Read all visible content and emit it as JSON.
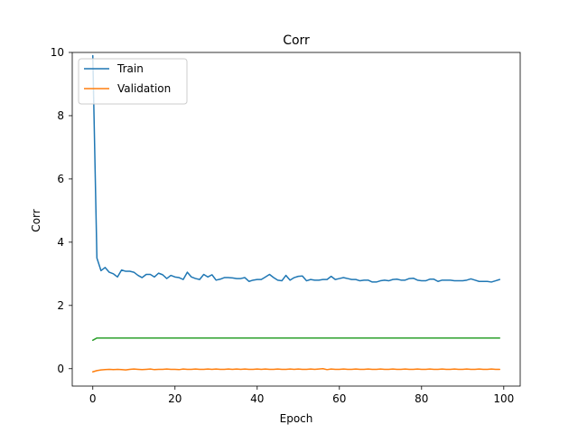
{
  "chart_data": {
    "type": "line",
    "title": "Corr",
    "xlabel": "Epoch",
    "ylabel": "Corr",
    "xlim": [
      -5,
      104
    ],
    "ylim": [
      -0.55,
      10.0
    ],
    "xticks": [
      0,
      20,
      40,
      60,
      80,
      100
    ],
    "yticks": [
      0,
      2,
      4,
      6,
      8,
      10
    ],
    "grid": false,
    "legend": {
      "placement": "top-left",
      "entries": [
        "Train",
        "Validation"
      ]
    },
    "series": [
      {
        "name": "Train",
        "color": "#1f77b4",
        "x": [
          0,
          1,
          2,
          3,
          4,
          5,
          6,
          7,
          8,
          9,
          10,
          11,
          12,
          13,
          14,
          15,
          16,
          17,
          18,
          19,
          20,
          21,
          22,
          23,
          24,
          25,
          26,
          27,
          28,
          29,
          30,
          31,
          32,
          33,
          34,
          35,
          36,
          37,
          38,
          39,
          40,
          41,
          42,
          43,
          44,
          45,
          46,
          47,
          48,
          49,
          50,
          51,
          52,
          53,
          54,
          55,
          56,
          57,
          58,
          59,
          60,
          61,
          62,
          63,
          64,
          65,
          66,
          67,
          68,
          69,
          70,
          71,
          72,
          73,
          74,
          75,
          76,
          77,
          78,
          79,
          80,
          81,
          82,
          83,
          84,
          85,
          86,
          87,
          88,
          89,
          90,
          91,
          92,
          93,
          94,
          95,
          96,
          97,
          98,
          99
        ],
        "y": [
          9.9,
          3.5,
          3.1,
          3.2,
          3.05,
          3.0,
          2.9,
          3.12,
          3.08,
          3.08,
          3.05,
          2.95,
          2.88,
          2.98,
          2.98,
          2.9,
          3.02,
          2.97,
          2.85,
          2.95,
          2.9,
          2.88,
          2.82,
          3.05,
          2.9,
          2.85,
          2.82,
          2.98,
          2.9,
          2.97,
          2.8,
          2.83,
          2.88,
          2.88,
          2.87,
          2.85,
          2.85,
          2.88,
          2.76,
          2.8,
          2.82,
          2.82,
          2.9,
          2.98,
          2.88,
          2.8,
          2.78,
          2.95,
          2.8,
          2.88,
          2.92,
          2.93,
          2.78,
          2.82,
          2.8,
          2.8,
          2.82,
          2.82,
          2.92,
          2.82,
          2.85,
          2.88,
          2.85,
          2.82,
          2.82,
          2.78,
          2.8,
          2.8,
          2.74,
          2.74,
          2.78,
          2.8,
          2.78,
          2.82,
          2.83,
          2.8,
          2.8,
          2.85,
          2.86,
          2.8,
          2.78,
          2.78,
          2.83,
          2.83,
          2.76,
          2.8,
          2.8,
          2.8,
          2.78,
          2.78,
          2.78,
          2.8,
          2.84,
          2.8,
          2.76,
          2.76,
          2.76,
          2.74,
          2.78,
          2.82
        ]
      },
      {
        "name": "Validation",
        "color": "#ff7f0e",
        "x": [
          0,
          1,
          2,
          3,
          4,
          5,
          6,
          7,
          8,
          9,
          10,
          11,
          12,
          13,
          14,
          15,
          16,
          17,
          18,
          19,
          20,
          21,
          22,
          23,
          24,
          25,
          26,
          27,
          28,
          29,
          30,
          31,
          32,
          33,
          34,
          35,
          36,
          37,
          38,
          39,
          40,
          41,
          42,
          43,
          44,
          45,
          46,
          47,
          48,
          49,
          50,
          51,
          52,
          53,
          54,
          55,
          56,
          57,
          58,
          59,
          60,
          61,
          62,
          63,
          64,
          65,
          66,
          67,
          68,
          69,
          70,
          71,
          72,
          73,
          74,
          75,
          76,
          77,
          78,
          79,
          80,
          81,
          82,
          83,
          84,
          85,
          86,
          87,
          88,
          89,
          90,
          91,
          92,
          93,
          94,
          95,
          96,
          97,
          98,
          99
        ],
        "y": [
          -0.1,
          -0.06,
          -0.04,
          -0.03,
          -0.02,
          -0.03,
          -0.02,
          -0.03,
          -0.04,
          -0.02,
          -0.01,
          -0.02,
          -0.03,
          -0.02,
          -0.01,
          -0.03,
          -0.02,
          -0.02,
          -0.01,
          -0.02,
          -0.02,
          -0.03,
          -0.01,
          -0.02,
          -0.02,
          -0.01,
          -0.02,
          -0.02,
          -0.01,
          -0.02,
          -0.01,
          -0.02,
          -0.02,
          -0.01,
          -0.02,
          -0.01,
          -0.02,
          -0.01,
          -0.02,
          -0.02,
          -0.01,
          -0.02,
          -0.01,
          -0.02,
          -0.02,
          -0.01,
          -0.02,
          -0.02,
          -0.01,
          -0.02,
          -0.01,
          -0.02,
          -0.02,
          -0.01,
          -0.02,
          -0.01,
          0.0,
          -0.03,
          -0.01,
          -0.02,
          -0.02,
          -0.01,
          -0.02,
          -0.02,
          -0.01,
          -0.02,
          -0.02,
          -0.01,
          -0.02,
          -0.02,
          -0.01,
          -0.02,
          -0.02,
          -0.01,
          -0.02,
          -0.02,
          -0.01,
          -0.02,
          -0.02,
          -0.01,
          -0.02,
          -0.02,
          -0.01,
          -0.02,
          -0.02,
          -0.01,
          -0.02,
          -0.02,
          -0.01,
          -0.02,
          -0.02,
          -0.01,
          -0.02,
          -0.02,
          -0.01,
          -0.02,
          -0.02,
          -0.01,
          -0.02,
          -0.02
        ]
      },
      {
        "color": "#2ca02c",
        "x": [
          0,
          1,
          2,
          3,
          4,
          5,
          6,
          7,
          8,
          9,
          10,
          20,
          30,
          40,
          50,
          60,
          70,
          80,
          90,
          99
        ],
        "y": [
          0.9,
          0.97,
          0.97,
          0.97,
          0.97,
          0.97,
          0.97,
          0.97,
          0.97,
          0.97,
          0.97,
          0.97,
          0.97,
          0.97,
          0.97,
          0.97,
          0.97,
          0.97,
          0.97,
          0.97
        ]
      }
    ]
  }
}
